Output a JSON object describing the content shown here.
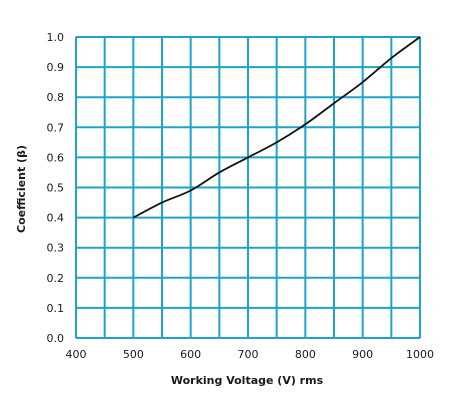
{
  "chart_data": {
    "type": "line",
    "title": "",
    "xlabel": "Working Voltage (V) rms",
    "ylabel": "Coefficient (β)",
    "xlim": [
      400,
      1000
    ],
    "ylim": [
      0.0,
      1.0
    ],
    "x_ticks": [
      "400",
      "500",
      "600",
      "700",
      "800",
      "900",
      "1000"
    ],
    "y_ticks": [
      "0.0",
      "0.1",
      "0.2",
      "0.3",
      "0.4",
      "0.5",
      "0.6",
      "0.7",
      "0.8",
      "0.9",
      "1.0"
    ],
    "grid": true,
    "grid_x_step": 50,
    "grid_y_step": 0.1,
    "grid_color": "#1ea3c9",
    "line_color": "#111111",
    "series": [
      {
        "x": [
          500,
          550,
          600,
          650,
          700,
          750,
          800,
          850,
          900,
          950,
          1000
        ],
        "y": [
          0.4,
          0.45,
          0.49,
          0.55,
          0.6,
          0.65,
          0.71,
          0.78,
          0.85,
          0.93,
          1.0
        ]
      }
    ]
  }
}
